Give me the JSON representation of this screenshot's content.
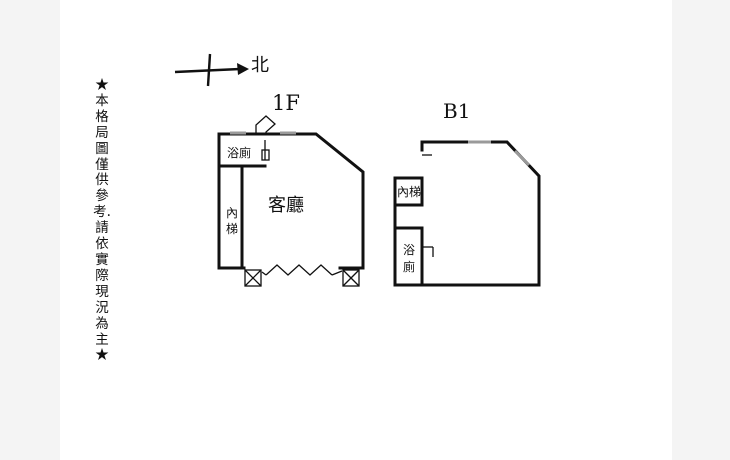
{
  "compass": {
    "label": "北"
  },
  "disclaimer": "★本格局圖僅供參考.請依實際現況為主★",
  "floor_1f": {
    "title": "1F",
    "bath_label": "浴廁",
    "living_room_label": "客廳",
    "stairs_label": [
      "內",
      "梯"
    ]
  },
  "floor_b1": {
    "title": "B1",
    "stairs_label": "內梯",
    "bath_label": [
      "浴",
      "廁"
    ]
  },
  "colors": {
    "background": "#f4f4f4",
    "paper": "#ffffff",
    "line": "#111111",
    "window": "#9a9a9a"
  }
}
